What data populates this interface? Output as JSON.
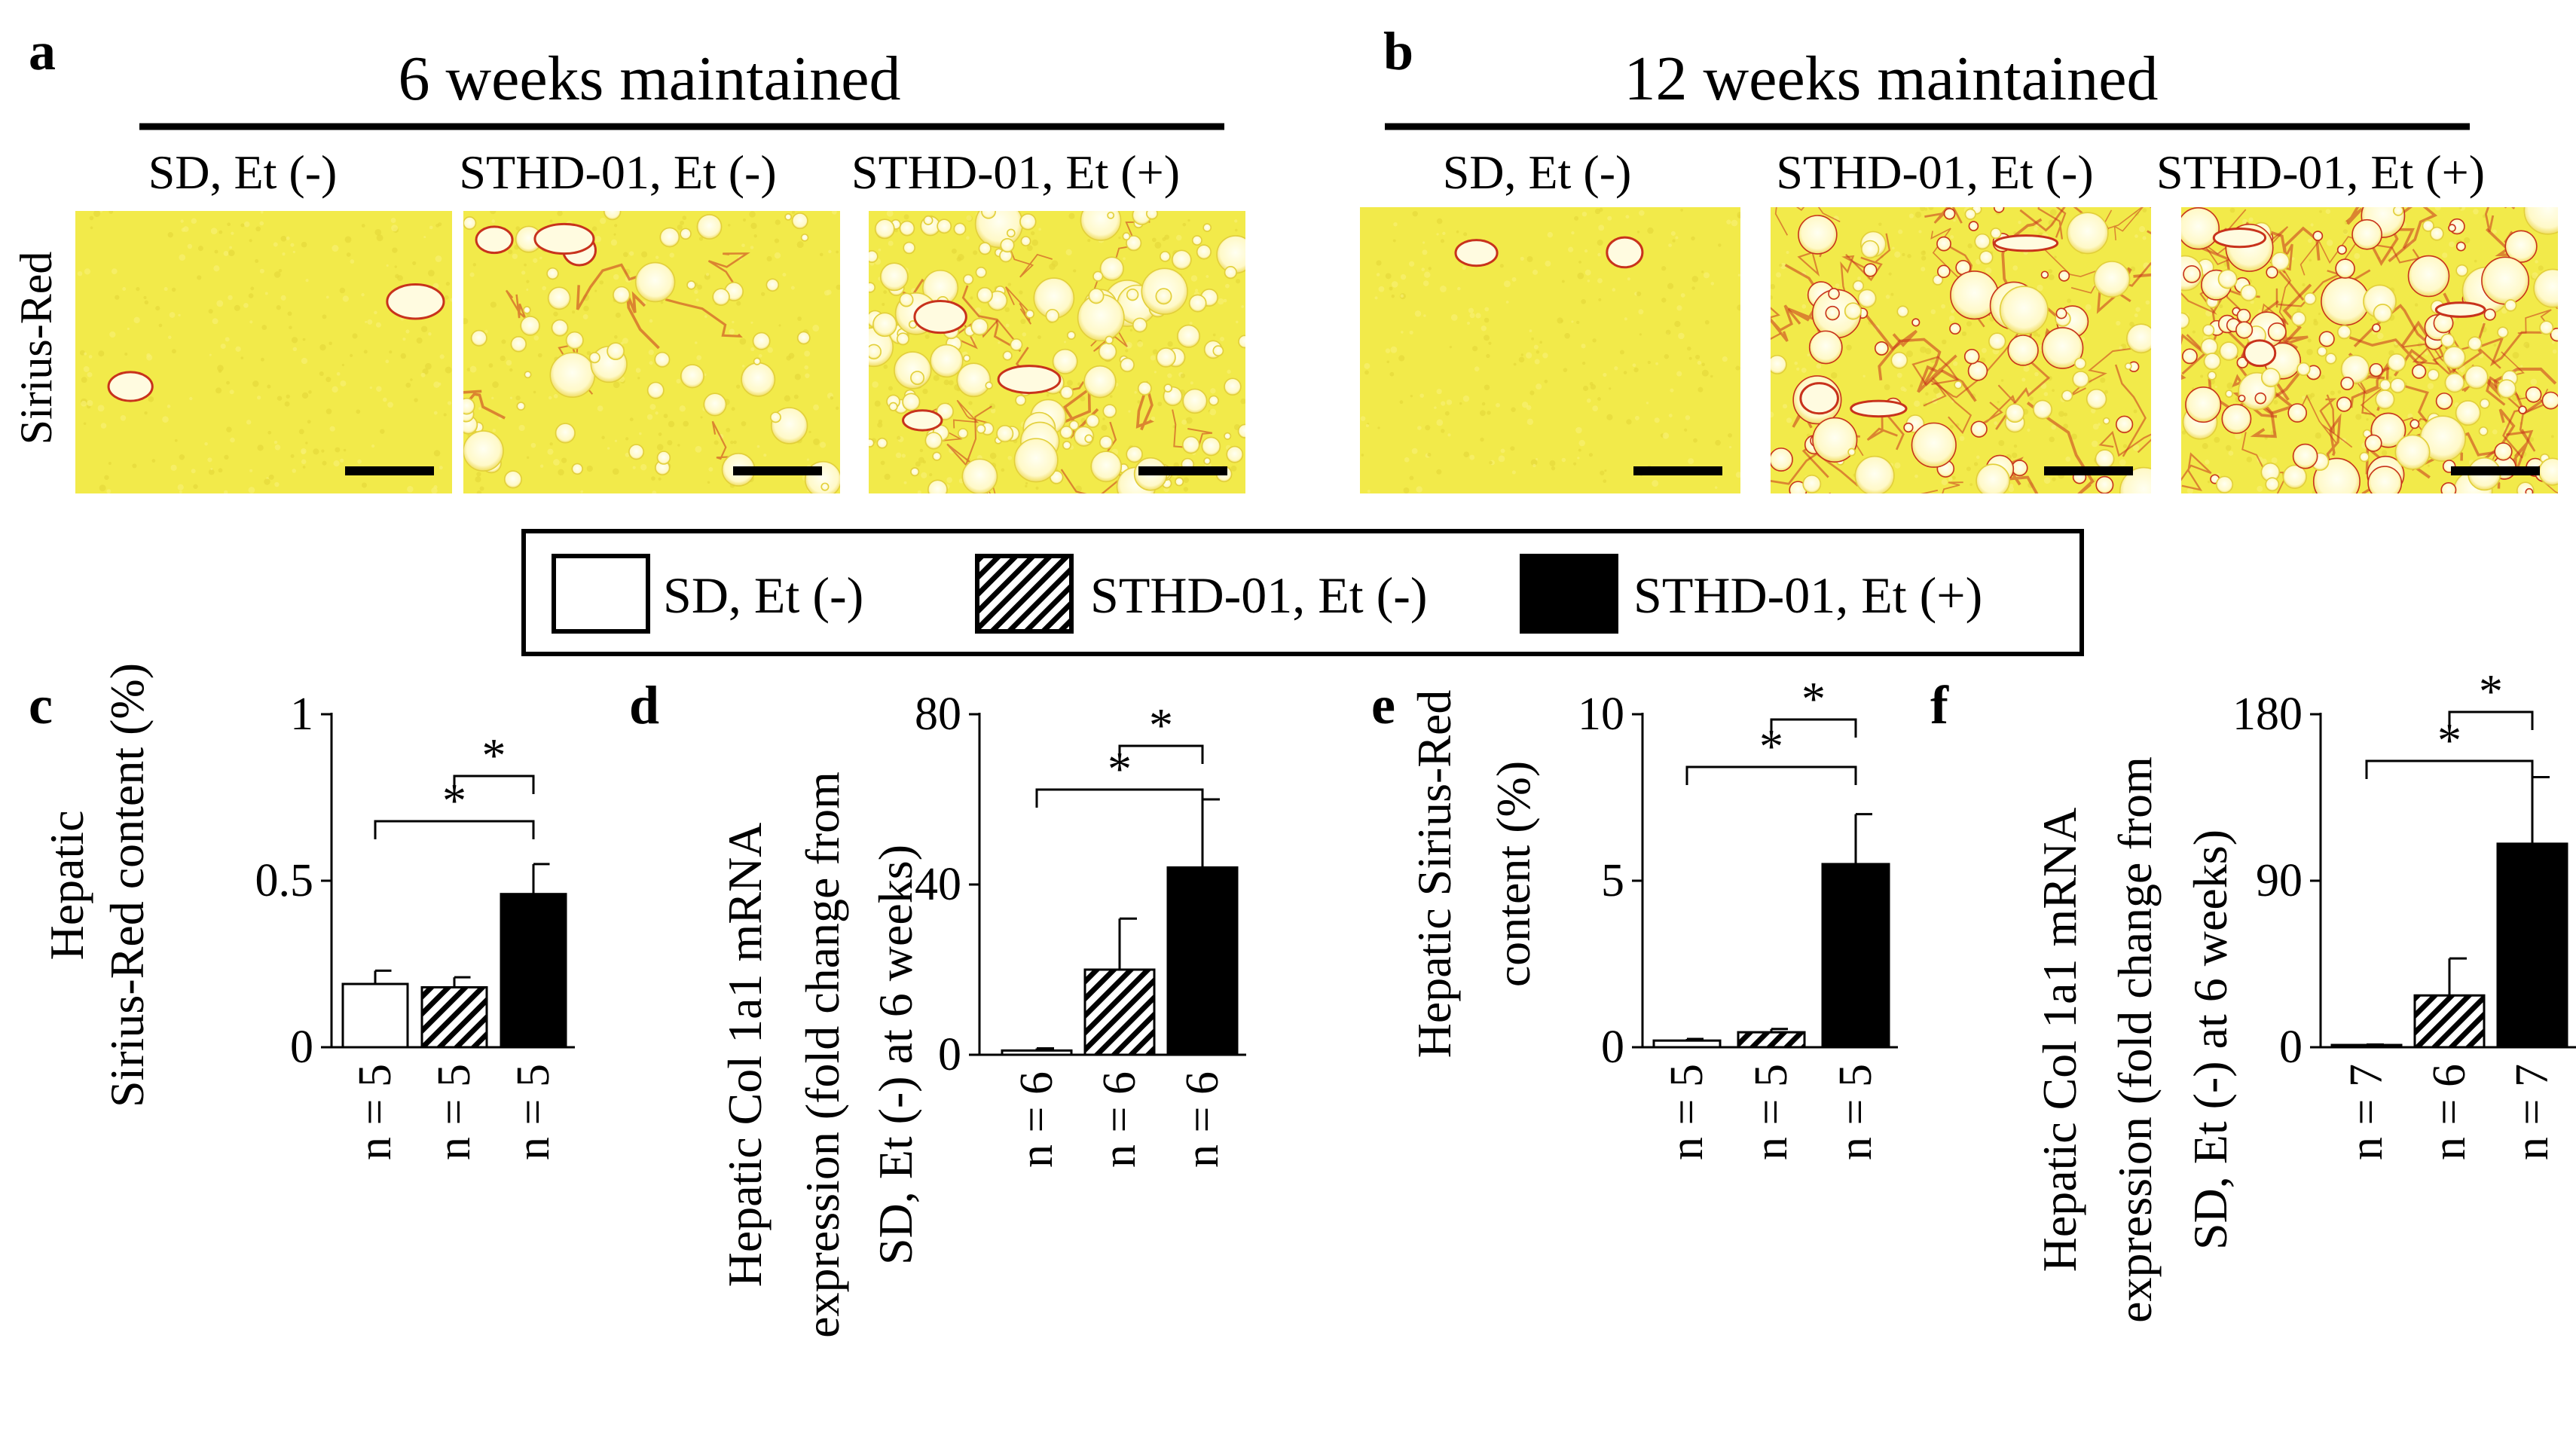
{
  "panel_a": {
    "letter": "a",
    "title": "6 weeks maintained",
    "stain_label": "Sirius-Red",
    "images": [
      {
        "label": "SD, Et (-)",
        "tissue": "normal"
      },
      {
        "label": "STHD-01, Et (-)",
        "tissue": "moderate steatosis"
      },
      {
        "label": "STHD-01, Et (+)",
        "tissue": "marked steatosis"
      }
    ]
  },
  "panel_b": {
    "letter": "b",
    "title": "12 weeks maintained",
    "images": [
      {
        "label": "SD, Et (-)",
        "tissue": "normal"
      },
      {
        "label": "STHD-01, Et (-)",
        "tissue": "steatosis with fibrosis"
      },
      {
        "label": "STHD-01, Et (+)",
        "tissue": "marked steatosis with fibrosis"
      }
    ]
  },
  "legend": {
    "entries": [
      {
        "label": "SD, Et (-)",
        "fill": "white"
      },
      {
        "label": "STHD-01, Et (-)",
        "fill": "hatched"
      },
      {
        "label": "STHD-01, Et (+)",
        "fill": "black"
      }
    ]
  },
  "colors": {
    "stain_yellow": "#f2ea4a",
    "fibrosis_red": "#c8321c",
    "bar_black": "#000000"
  },
  "chart_data": [
    {
      "panel": "c",
      "type": "bar",
      "ylabel_lines": [
        "Hepatic",
        "Sirius-Red content (%)"
      ],
      "ylim": [
        0,
        1
      ],
      "yticks": [
        "0",
        "0.5",
        "1"
      ],
      "ytick_values": [
        0,
        0.5,
        1
      ],
      "categories": [
        "SD, Et (-)",
        "STHD-01, Et (-)",
        "STHD-01, Et (+)"
      ],
      "values": [
        0.19,
        0.18,
        0.46
      ],
      "errors": [
        0.04,
        0.03,
        0.09
      ],
      "n": [
        "n = 5",
        "n = 5",
        "n = 5"
      ],
      "significance": [
        {
          "from": 1,
          "to": 2,
          "label": "*"
        },
        {
          "from": 0,
          "to": 2,
          "label": "*"
        }
      ]
    },
    {
      "panel": "d",
      "type": "bar",
      "ylabel_lines": [
        "Hepatic Col 1a1 mRNA",
        "expression (fold change from",
        "SD, Et (-) at 6 weeks)"
      ],
      "ylim": [
        0,
        80
      ],
      "yticks": [
        "0",
        "40",
        "80"
      ],
      "ytick_values": [
        0,
        40,
        80
      ],
      "categories": [
        "SD, Et (-)",
        "STHD-01, Et (-)",
        "STHD-01, Et (+)"
      ],
      "values": [
        1,
        20,
        44
      ],
      "errors": [
        0.5,
        12,
        16
      ],
      "n": [
        "n = 6",
        "n = 6",
        "n = 6"
      ],
      "significance": [
        {
          "from": 1,
          "to": 2,
          "label": "*"
        },
        {
          "from": 0,
          "to": 2,
          "label": "*"
        }
      ]
    },
    {
      "panel": "e",
      "type": "bar",
      "ylabel_lines": [
        "Hepatic Sirius-Red",
        "content (%)"
      ],
      "ylim": [
        0,
        10
      ],
      "yticks": [
        "0",
        "5",
        "10"
      ],
      "ytick_values": [
        0,
        5,
        10
      ],
      "categories": [
        "SD, Et (-)",
        "STHD-01, Et (-)",
        "STHD-01, Et (+)"
      ],
      "values": [
        0.2,
        0.45,
        5.5
      ],
      "errors": [
        0.05,
        0.1,
        1.5
      ],
      "n": [
        "n = 5",
        "n = 5",
        "n = 5"
      ],
      "significance": [
        {
          "from": 1,
          "to": 2,
          "label": "*"
        },
        {
          "from": 0,
          "to": 2,
          "label": "*"
        }
      ]
    },
    {
      "panel": "f",
      "type": "bar",
      "ylabel_lines": [
        "Hepatic Col 1a1 mRNA",
        "expression (fold change from",
        "SD, Et (-) at 6 weeks)"
      ],
      "ylim": [
        0,
        180
      ],
      "yticks": [
        "0",
        "90",
        "180"
      ],
      "ytick_values": [
        0,
        90,
        180
      ],
      "categories": [
        "SD, Et (-)",
        "STHD-01, Et (-)",
        "STHD-01, Et (+)"
      ],
      "values": [
        1,
        28,
        110
      ],
      "errors": [
        0.5,
        20,
        36
      ],
      "n": [
        "n = 7",
        "n = 6",
        "n = 7"
      ],
      "significance": [
        {
          "from": 1,
          "to": 2,
          "label": "*"
        },
        {
          "from": 0,
          "to": 2,
          "label": "*"
        }
      ]
    }
  ]
}
